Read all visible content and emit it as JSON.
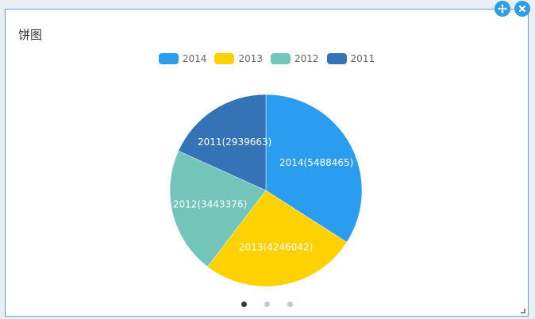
{
  "panel": {
    "title": "饼图"
  },
  "controls": {
    "move_icon": "move-icon",
    "close_icon": "close-icon",
    "accent_color": "#2f9ce3"
  },
  "chart_data": {
    "type": "pie",
    "title": "饼图",
    "legend_position": "top-center",
    "slices": [
      {
        "label": "2014",
        "value": 5488465,
        "display": "2014(5488465)",
        "color": "#2b9df1"
      },
      {
        "label": "2013",
        "value": 4246042,
        "display": "2013(4246042)",
        "color": "#fed100"
      },
      {
        "label": "2012",
        "value": 3443376,
        "display": "2012(3443376)",
        "color": "#73c4b9"
      },
      {
        "label": "2011",
        "value": 2939663,
        "display": "2011(2939663)",
        "color": "#3474b6"
      }
    ]
  },
  "pager": {
    "count": 3,
    "active": 1
  }
}
